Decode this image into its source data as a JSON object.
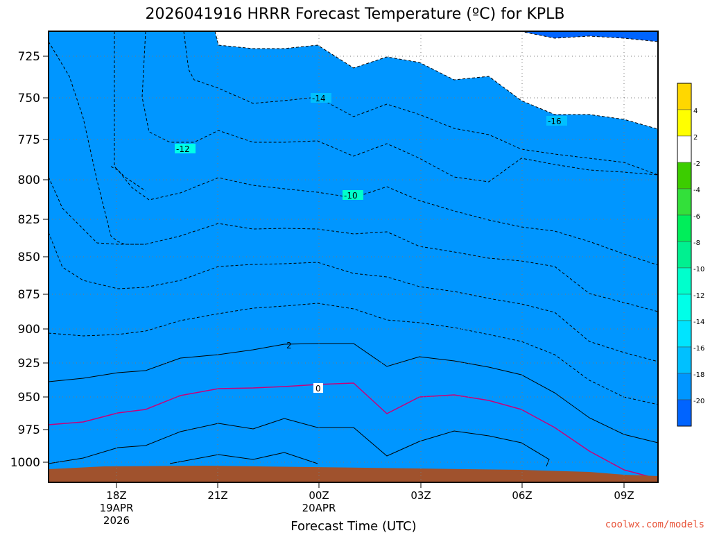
{
  "chart_data": {
    "type": "contour",
    "title": "2026041916 HRRR Forecast Temperature (ºC) for KPLB",
    "xlabel": "Forecast Time (UTC)",
    "ylabel": "",
    "y_axis": {
      "type": "pressure",
      "inverted": true,
      "range": [
        1012,
        713
      ]
    },
    "y_ticks": [
      "725",
      "750",
      "775",
      "800",
      "825",
      "850",
      "875",
      "900",
      "925",
      "950",
      "975",
      "1000"
    ],
    "x_range_hours": [
      16,
      10
    ],
    "x_ticks": [
      {
        "label": "18Z",
        "sub1": "19APR",
        "sub2": "2026"
      },
      {
        "label": "21Z",
        "sub1": "",
        "sub2": ""
      },
      {
        "label": "00Z",
        "sub1": "20APR",
        "sub2": ""
      },
      {
        "label": "03Z",
        "sub1": "",
        "sub2": ""
      },
      {
        "label": "06Z",
        "sub1": "",
        "sub2": ""
      },
      {
        "label": "09Z",
        "sub1": "",
        "sub2": ""
      }
    ],
    "contour_levels_c": [
      -20,
      -18,
      -16,
      -14,
      -12,
      -10,
      -8,
      -6,
      -4,
      -2,
      0,
      2,
      4
    ],
    "contour_labels": [
      "-16",
      "-14",
      "-12",
      "-10",
      "2",
      "0"
    ],
    "colorbar": {
      "ticks": [
        "4",
        "2",
        "-2",
        "-4",
        "-6",
        "-8",
        "-10",
        "-12",
        "-14",
        "-16",
        "-18",
        "-20"
      ],
      "colors": [
        "#ffd700",
        "#ffff00",
        "#ffffff",
        "#3ccd00",
        "#33e03a",
        "#00ee5a",
        "#00f090",
        "#00ffcc",
        "#00ffe8",
        "#00e4ff",
        "#00c0ff",
        "#0096ff",
        "#0064ff"
      ]
    },
    "grid": true,
    "ground": "#a0522d"
  },
  "credit": "coolwx.com/models"
}
